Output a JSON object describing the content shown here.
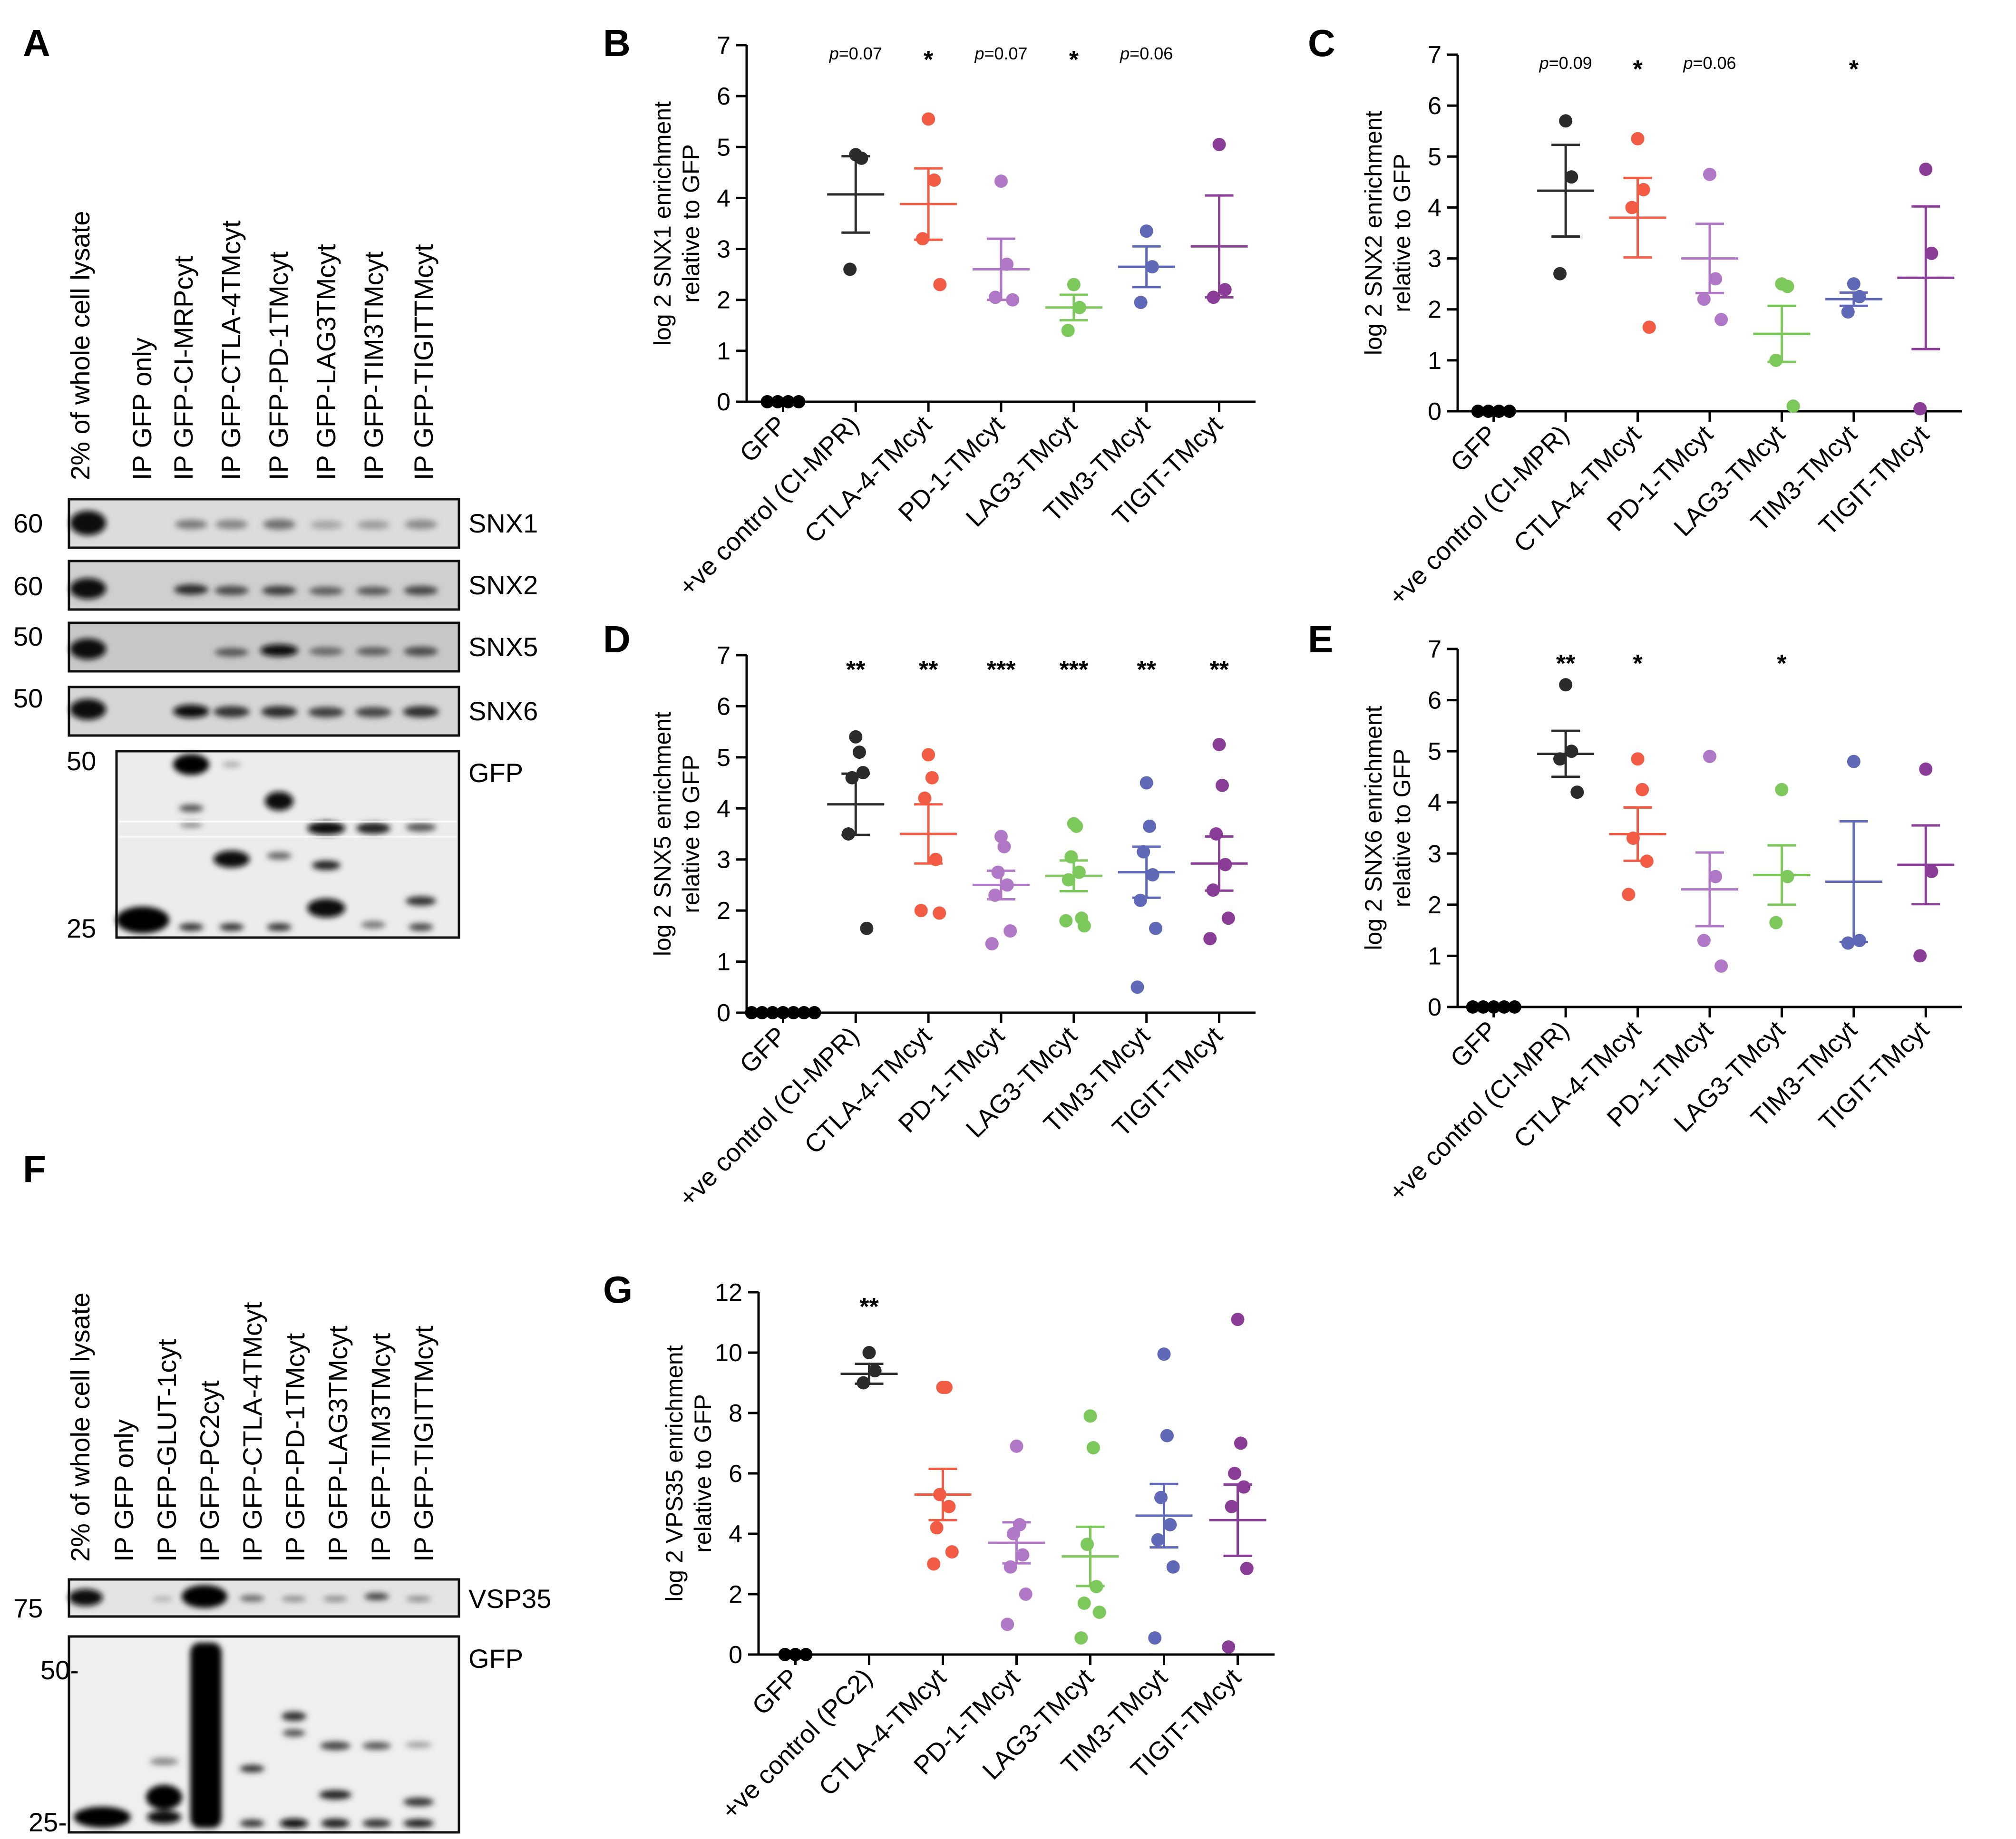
{
  "panel_letters": {
    "A": "A",
    "B": "B",
    "C": "C",
    "D": "D",
    "E": "E",
    "F": "F",
    "G": "G"
  },
  "colors": {
    "GFP": "#000000",
    "control": "#2b2b2b",
    "CTLA": "#f25c45",
    "PD1": "#b178c7",
    "LAG3": "#7cc85b",
    "TIM3": "#5f69b8",
    "TIGIT": "#8a3d96"
  },
  "blot_A": {
    "lanes": [
      "2% of whole cell lysate",
      "IP GFP only",
      "IP GFP-CI-MRPcyt",
      "IP GFP-CTLA-4TMcyt",
      "IP GFP-PD-1TMcyt",
      "IP GFP-LAG3TMcyt",
      "IP GFP-TIM3TMcyt",
      "IP GFP-TIGITTMcyt"
    ],
    "strips": [
      {
        "label": "SNX1",
        "marker": "60"
      },
      {
        "label": "SNX2",
        "marker": "60"
      },
      {
        "label": "SNX5",
        "marker": "50"
      },
      {
        "label": "SNX6",
        "marker": "50"
      }
    ],
    "gfp_label": "GFP",
    "gfp_markers": [
      "50",
      "25"
    ]
  },
  "blot_F": {
    "lanes": [
      "2% of whole cell lysate",
      "IP GFP only",
      "IP GFP-GLUT-1cyt",
      "IP GFP-PC2cyt",
      "IP GFP-CTLA-4TMcyt",
      "IP GFP-PD-1TMcyt",
      "IP GFP-LAG3TMcyt",
      "IP GFP-TIM3TMcyt",
      "IP GFP-TIGITTMcyt"
    ],
    "strip_label": "VSP35",
    "strip_marker": "75",
    "gfp_label": "GFP",
    "gfp_markers": [
      "50-",
      "25-"
    ]
  },
  "chart_data": [
    {
      "panel": "B",
      "type": "scatter",
      "ylabel": [
        "log 2 SNX1 enrichment",
        "relative to GFP"
      ],
      "ylim": [
        0,
        7
      ],
      "yticks": [
        0,
        1,
        2,
        3,
        4,
        5,
        6,
        7
      ],
      "categories": [
        "GFP",
        "+ve control (CI-MPR)",
        "CTLA-4-TMcyt",
        "PD-1-TMcyt",
        "LAG3-TMcyt",
        "TIM3-TMcyt",
        "TIGIT-TMcyt"
      ],
      "annotations": [
        {
          "cat": 1,
          "text": "p=0.07",
          "italic_p": true
        },
        {
          "cat": 2,
          "text": "*"
        },
        {
          "cat": 3,
          "text": "p=0.07",
          "italic_p": true
        },
        {
          "cat": 4,
          "text": "*"
        },
        {
          "cat": 5,
          "text": "p=0.06",
          "italic_p": true
        }
      ],
      "series": [
        {
          "points": [
            0,
            0,
            0,
            0
          ],
          "mean": null,
          "sem": null
        },
        {
          "points": [
            4.85,
            4.78,
            2.6
          ],
          "mean": 4.07,
          "sem": 0.75
        },
        {
          "points": [
            5.55,
            4.35,
            3.2,
            2.3
          ],
          "mean": 3.88,
          "sem": 0.7
        },
        {
          "points": [
            4.33,
            2.7,
            2.05,
            2.0
          ],
          "mean": 2.6,
          "sem": 0.6
        },
        {
          "points": [
            2.3,
            1.85,
            1.4
          ],
          "mean": 1.85,
          "sem": 0.25
        },
        {
          "points": [
            3.35,
            2.65,
            1.95
          ],
          "mean": 2.65,
          "sem": 0.4
        },
        {
          "points": [
            5.05,
            2.2,
            2.05
          ],
          "mean": 3.05,
          "sem": 1.0
        }
      ]
    },
    {
      "panel": "C",
      "type": "scatter",
      "ylabel": [
        "log 2 SNX2 enrichment",
        "relative to GFP"
      ],
      "ylim": [
        0,
        7
      ],
      "yticks": [
        0,
        1,
        2,
        3,
        4,
        5,
        6,
        7
      ],
      "categories": [
        "GFP",
        "+ve control (CI-MPR)",
        "CTLA-4-TMcyt",
        "PD-1-TMcyt",
        "LAG3-TMcyt",
        "TIM3-TMcyt",
        "TIGIT-TMcyt"
      ],
      "annotations": [
        {
          "cat": 1,
          "text": "p=0.09",
          "italic_p": true
        },
        {
          "cat": 2,
          "text": "*"
        },
        {
          "cat": 3,
          "text": "p=0.06",
          "italic_p": true
        },
        {
          "cat": 5,
          "text": "*"
        }
      ],
      "series": [
        {
          "points": [
            0,
            0,
            0,
            0
          ],
          "mean": null,
          "sem": null
        },
        {
          "points": [
            5.7,
            4.6,
            2.7
          ],
          "mean": 4.33,
          "sem": 0.9
        },
        {
          "points": [
            5.35,
            4.35,
            4.0,
            1.65
          ],
          "mean": 3.8,
          "sem": 0.78
        },
        {
          "points": [
            4.65,
            2.6,
            2.2,
            1.8
          ],
          "mean": 3.0,
          "sem": 0.68
        },
        {
          "points": [
            2.5,
            2.45,
            1.0,
            0.1
          ],
          "mean": 1.52,
          "sem": 0.55
        },
        {
          "points": [
            2.5,
            2.25,
            1.95
          ],
          "mean": 2.2,
          "sem": 0.13
        },
        {
          "points": [
            4.75,
            3.1,
            0.05
          ],
          "mean": 2.62,
          "sem": 1.4
        }
      ]
    },
    {
      "panel": "D",
      "type": "scatter",
      "ylabel": [
        "log 2 SNX5 enrichment",
        "relative to GFP"
      ],
      "ylim": [
        0,
        7
      ],
      "yticks": [
        0,
        1,
        2,
        3,
        4,
        5,
        6,
        7
      ],
      "categories": [
        "GFP",
        "+ve control (CI-MPR)",
        "CTLA-4-TMcyt",
        "PD-1-TMcyt",
        "LAG3-TMcyt",
        "TIM3-TMcyt",
        "TIGIT-TMcyt"
      ],
      "annotations": [
        {
          "cat": 1,
          "text": "**"
        },
        {
          "cat": 2,
          "text": "**"
        },
        {
          "cat": 3,
          "text": "***"
        },
        {
          "cat": 4,
          "text": "***"
        },
        {
          "cat": 5,
          "text": "**"
        },
        {
          "cat": 6,
          "text": "**"
        }
      ],
      "series": [
        {
          "points": [
            0,
            0,
            0,
            0,
            0,
            0,
            0
          ],
          "mean": null,
          "sem": null
        },
        {
          "points": [
            5.4,
            5.1,
            4.6,
            4.7,
            3.5,
            1.65
          ],
          "mean": 4.08,
          "sem": 0.6
        },
        {
          "points": [
            5.05,
            4.6,
            4.2,
            3.0,
            2.0,
            1.95
          ],
          "mean": 3.5,
          "sem": 0.58
        },
        {
          "points": [
            3.45,
            3.25,
            2.75,
            2.5,
            2.3,
            1.6,
            1.35
          ],
          "mean": 2.5,
          "sem": 0.28
        },
        {
          "points": [
            3.7,
            3.65,
            3.05,
            2.75,
            2.6,
            1.85,
            1.8,
            1.7
          ],
          "mean": 2.68,
          "sem": 0.3
        },
        {
          "points": [
            4.5,
            3.65,
            3.15,
            2.7,
            2.2,
            1.65,
            0.5
          ],
          "mean": 2.75,
          "sem": 0.5
        },
        {
          "points": [
            5.25,
            4.45,
            3.5,
            2.9,
            2.4,
            1.85,
            1.45
          ],
          "mean": 2.92,
          "sem": 0.53
        }
      ]
    },
    {
      "panel": "E",
      "type": "scatter",
      "ylabel": [
        "log 2  SNX6 enrichment",
        "relative to GFP"
      ],
      "ylim": [
        0,
        7
      ],
      "yticks": [
        0,
        1,
        2,
        3,
        4,
        5,
        6,
        7
      ],
      "categories": [
        "GFP",
        "+ve control (CI-MPR)",
        "CTLA-4-TMcyt",
        "PD-1-TMcyt",
        "LAG3-TMcyt",
        "TIM3-TMcyt",
        "TIGIT-TMcyt"
      ],
      "annotations": [
        {
          "cat": 1,
          "text": "**"
        },
        {
          "cat": 2,
          "text": "*"
        },
        {
          "cat": 4,
          "text": "*"
        }
      ],
      "series": [
        {
          "points": [
            0,
            0,
            0,
            0,
            0
          ],
          "mean": null,
          "sem": null
        },
        {
          "points": [
            6.3,
            5.0,
            4.85,
            4.2
          ],
          "mean": 4.95,
          "sem": 0.45
        },
        {
          "points": [
            4.85,
            4.25,
            3.3,
            2.85,
            2.2
          ],
          "mean": 3.38,
          "sem": 0.52
        },
        {
          "points": [
            4.9,
            2.55,
            1.3,
            0.8
          ],
          "mean": 2.3,
          "sem": 0.72
        },
        {
          "points": [
            4.25,
            2.55,
            1.65
          ],
          "mean": 2.58,
          "sem": 0.58
        },
        {
          "points": [
            4.8,
            1.3,
            1.25
          ],
          "mean": 2.45,
          "sem": 1.18
        },
        {
          "points": [
            4.65,
            2.65,
            1.0
          ],
          "mean": 2.78,
          "sem": 0.77
        }
      ]
    },
    {
      "panel": "G",
      "type": "scatter",
      "ylabel": [
        "log 2 VPS35 enrichment",
        "relative to GFP"
      ],
      "ylim": [
        0,
        12
      ],
      "yticks": [
        0,
        2,
        4,
        6,
        8,
        10,
        12
      ],
      "categories": [
        "GFP",
        "+ve control (PC2)",
        "CTLA-4-TMcyt",
        "PD-1-TMcyt",
        "LAG3-TMcyt",
        "TIM3-TMcyt",
        "TIGIT-TMcyt"
      ],
      "annotations": [
        {
          "cat": 1,
          "text": "**"
        }
      ],
      "series": [
        {
          "points": [
            0,
            0,
            0
          ],
          "mean": null,
          "sem": null
        },
        {
          "points": [
            10.0,
            9.4,
            9.0
          ],
          "mean": 9.3,
          "sem": 0.33
        },
        {
          "points": [
            8.85,
            8.85,
            5.3,
            4.9,
            4.2,
            3.4,
            3.0
          ],
          "mean": 5.3,
          "sem": 0.85
        },
        {
          "points": [
            6.9,
            4.3,
            4.0,
            3.3,
            2.9,
            2.0,
            1.0
          ],
          "mean": 3.7,
          "sem": 0.68
        },
        {
          "points": [
            7.9,
            6.85,
            3.65,
            2.25,
            1.7,
            1.4,
            0.55
          ],
          "mean": 3.25,
          "sem": 0.98
        },
        {
          "points": [
            9.95,
            7.25,
            5.2,
            4.3,
            3.8,
            2.9,
            0.55
          ],
          "mean": 4.6,
          "sem": 1.05
        },
        {
          "points": [
            11.1,
            7.0,
            6.0,
            5.55,
            4.9,
            2.85,
            0.25
          ],
          "mean": 4.45,
          "sem": 1.18
        }
      ]
    }
  ]
}
